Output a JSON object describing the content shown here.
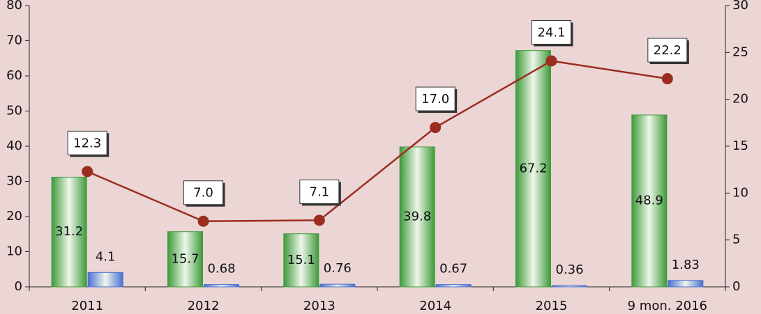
{
  "chart_data": {
    "type": "bar",
    "categories": [
      "2011",
      "2012",
      "2013",
      "2014",
      "2015",
      "9 mon. 2016"
    ],
    "series": [
      {
        "type": "bar",
        "color": "#3d9a3a",
        "values": [
          31.2,
          15.7,
          15.1,
          39.8,
          67.2,
          48.9
        ]
      },
      {
        "type": "bar",
        "color": "#4a6fd0",
        "values": [
          4.1,
          0.68,
          0.76,
          0.67,
          0.36,
          1.83
        ]
      },
      {
        "type": "line",
        "axis": "y2",
        "color": "#9b2d20",
        "values": [
          12.3,
          7.0,
          7.1,
          17.0,
          24.1,
          22.2
        ],
        "value_labels": [
          "12.3",
          "7.0",
          "7.1",
          "17.0",
          "24.1",
          "22.2"
        ]
      }
    ],
    "ylim": [
      0,
      80
    ],
    "yticks": [
      0,
      10,
      20,
      30,
      40,
      50,
      60,
      70,
      80
    ],
    "y2lim": [
      0,
      30
    ],
    "y2ticks": [
      0,
      5,
      10,
      15,
      20,
      25,
      30
    ]
  }
}
